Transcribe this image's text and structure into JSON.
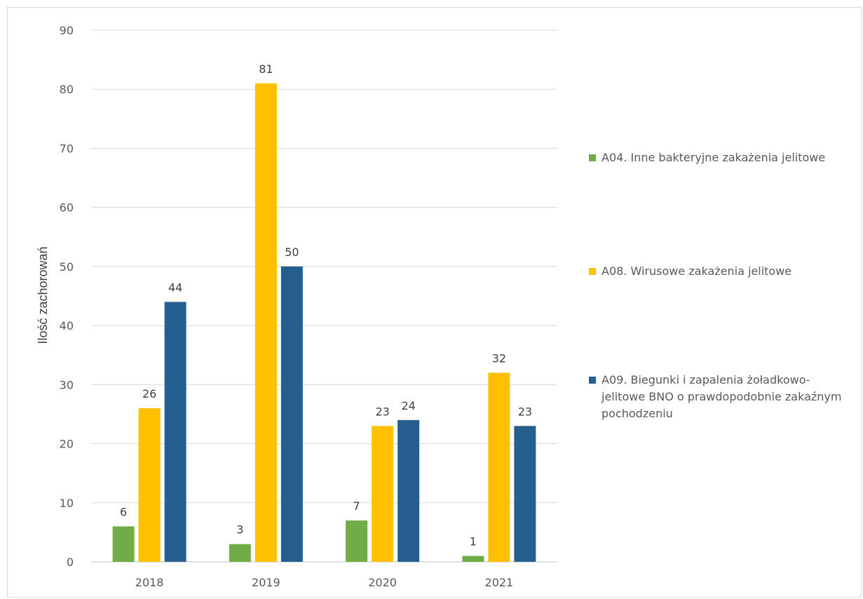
{
  "chart_data": {
    "type": "bar",
    "categories": [
      "2018",
      "2019",
      "2020",
      "2021"
    ],
    "series": [
      {
        "name": "A04. Inne bakteryjne zakażenia jelitowe",
        "color": "#70ad47",
        "values": [
          6,
          3,
          7,
          1
        ]
      },
      {
        "name": "A08. Wirusowe zakażenia jelitowe",
        "color": "#ffc000",
        "values": [
          26,
          81,
          23,
          32
        ]
      },
      {
        "name": "A09. Biegunki i zapalenia żoładkowo-jelitowe BNO o prawdopodobnie zakaźnym pochodzeniu",
        "color": "#255e91",
        "values": [
          44,
          50,
          24,
          23
        ]
      }
    ],
    "ylabel": "Ilość zachorowań",
    "xlabel": "",
    "ylim": [
      0,
      90
    ],
    "yticks": [
      0,
      10,
      20,
      30,
      40,
      50,
      60,
      70,
      80,
      90
    ],
    "grid": true,
    "legend_position": "right",
    "data_labels": true
  }
}
